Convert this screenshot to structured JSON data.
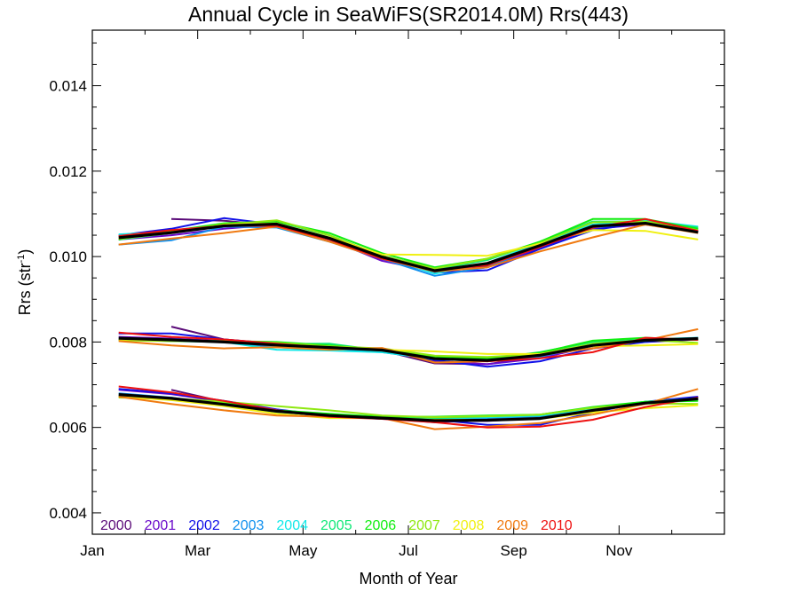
{
  "chart_data": {
    "type": "line",
    "title": "Annual Cycle in SeaWiFS(SR2014.0M) Rrs(443)",
    "xlabel": "Month of Year",
    "ylabel_base": "Rrs (str",
    "ylabel_exp": "-1",
    "ylabel_close": ")",
    "xlim": [
      1,
      13
    ],
    "ylim": [
      0.0035,
      0.0153
    ],
    "x_ticks": [
      {
        "value": 1,
        "label": "Jan"
      },
      {
        "value": 3,
        "label": "Mar"
      },
      {
        "value": 5,
        "label": "May"
      },
      {
        "value": 7,
        "label": "Jul"
      },
      {
        "value": 9,
        "label": "Sep"
      },
      {
        "value": 11,
        "label": "Nov"
      }
    ],
    "y_ticks": [
      {
        "value": 0.004,
        "label": "0.004"
      },
      {
        "value": 0.006,
        "label": "0.006"
      },
      {
        "value": 0.008,
        "label": "0.008"
      },
      {
        "value": 0.01,
        "label": "0.010"
      },
      {
        "value": 0.012,
        "label": "0.012"
      },
      {
        "value": 0.014,
        "label": "0.014"
      }
    ],
    "x": [
      1.5,
      2.5,
      3.5,
      4.5,
      5.5,
      6.5,
      7.5,
      8.5,
      9.5,
      10.5,
      11.5,
      12.5
    ],
    "groups": [
      "upper",
      "middle",
      "lower"
    ],
    "series": [
      {
        "name": "2000",
        "color": "#5a0a78",
        "upper": [
          null,
          0.01088,
          0.01084,
          0.01072,
          0.0104,
          0.01002,
          0.00972,
          0.00978,
          0.01022,
          0.01068,
          0.01078,
          0.01058
        ],
        "middle": [
          null,
          0.00836,
          0.00806,
          0.00796,
          0.00788,
          0.0078,
          0.0075,
          0.00748,
          0.00766,
          0.00792,
          0.008,
          0.00806
        ],
        "lower": [
          null,
          0.00688,
          0.0066,
          0.00638,
          0.00625,
          0.00622,
          0.00612,
          0.00618,
          0.00622,
          0.00642,
          0.00658,
          0.00668
        ]
      },
      {
        "name": "2001",
        "color": "#6a0aca",
        "upper": [
          0.0104,
          0.0105,
          0.01065,
          0.01075,
          0.0104,
          0.0099,
          0.00965,
          0.00975,
          0.0102,
          0.01065,
          0.01075,
          0.01058
        ],
        "middle": [
          0.00812,
          0.00808,
          0.00802,
          0.00798,
          0.0079,
          0.0078,
          0.00756,
          0.00748,
          0.00762,
          0.0079,
          0.00802,
          0.00808
        ],
        "lower": [
          0.00688,
          0.00678,
          0.0066,
          0.0064,
          0.00628,
          0.0062,
          0.00615,
          0.00615,
          0.00622,
          0.0064,
          0.00658,
          0.0067
        ]
      },
      {
        "name": "2002",
        "color": "#1010e8",
        "upper": [
          0.0105,
          0.01065,
          0.0109,
          0.01075,
          0.0104,
          0.00995,
          0.00962,
          0.00968,
          0.01018,
          0.01062,
          0.0108,
          0.0106
        ],
        "middle": [
          0.0082,
          0.0082,
          0.00806,
          0.00795,
          0.00786,
          0.00778,
          0.00758,
          0.00742,
          0.00755,
          0.00785,
          0.008,
          0.00808
        ],
        "lower": [
          0.0069,
          0.0068,
          0.00662,
          0.00642,
          0.00628,
          0.00622,
          0.00618,
          0.00606,
          0.00606,
          0.00635,
          0.0066,
          0.00672
        ]
      },
      {
        "name": "2003",
        "color": "#1090ee",
        "upper": [
          0.01028,
          0.01038,
          0.0107,
          0.01068,
          0.01035,
          0.00995,
          0.00955,
          0.00975,
          0.01025,
          0.01068,
          0.0108,
          0.01065
        ],
        "middle": [
          0.00808,
          0.00806,
          0.008,
          0.00788,
          0.00782,
          0.00776,
          0.0076,
          0.00755,
          0.00766,
          0.00792,
          0.00802,
          0.0081
        ],
        "lower": [
          0.0068,
          0.0067,
          0.00652,
          0.00638,
          0.00626,
          0.0062,
          0.0062,
          0.00622,
          0.00626,
          0.00642,
          0.0066,
          0.00668
        ]
      },
      {
        "name": "2004",
        "color": "#10e8e8",
        "upper": [
          0.01052,
          0.01058,
          0.01072,
          0.01075,
          0.01042,
          0.01,
          0.0096,
          0.00985,
          0.01032,
          0.01075,
          0.01085,
          0.0107
        ],
        "middle": [
          0.00806,
          0.00806,
          0.008,
          0.00782,
          0.0078,
          0.00776,
          0.0076,
          0.00758,
          0.0077,
          0.00796,
          0.00806,
          0.0081
        ],
        "lower": [
          0.00676,
          0.00668,
          0.00652,
          0.00636,
          0.00628,
          0.00622,
          0.0062,
          0.00624,
          0.00628,
          0.00644,
          0.0066,
          0.00666
        ]
      },
      {
        "name": "2005",
        "color": "#10e878",
        "upper": [
          0.0104,
          0.01055,
          0.01072,
          0.01082,
          0.0105,
          0.01002,
          0.0097,
          0.00992,
          0.01035,
          0.01082,
          0.01082,
          0.01068
        ],
        "middle": [
          0.00806,
          0.00802,
          0.008,
          0.00795,
          0.00796,
          0.0078,
          0.00762,
          0.0076,
          0.00776,
          0.008,
          0.00806,
          0.00808
        ],
        "lower": [
          0.00672,
          0.00668,
          0.00655,
          0.00638,
          0.0063,
          0.00625,
          0.00622,
          0.00626,
          0.0063,
          0.00646,
          0.0066,
          0.00665
        ]
      },
      {
        "name": "2006",
        "color": "#10ee10",
        "upper": [
          0.0104,
          0.0106,
          0.01078,
          0.01082,
          0.01055,
          0.01008,
          0.00975,
          0.00995,
          0.01035,
          0.01088,
          0.01088,
          0.01065
        ],
        "middle": [
          0.00804,
          0.00804,
          0.00802,
          0.008,
          0.00792,
          0.00782,
          0.00765,
          0.00762,
          0.00775,
          0.00803,
          0.0081,
          0.00805
        ],
        "lower": [
          0.00672,
          0.00668,
          0.00658,
          0.0064,
          0.00632,
          0.00625,
          0.00625,
          0.00628,
          0.0063,
          0.00648,
          0.0066,
          0.00662
        ]
      },
      {
        "name": "2007",
        "color": "#8ee810",
        "upper": [
          0.01042,
          0.01058,
          0.01075,
          0.01085,
          0.0105,
          0.01002,
          0.00972,
          0.00995,
          0.01032,
          0.0108,
          0.01082,
          0.01062
        ],
        "middle": [
          0.00804,
          0.00802,
          0.00802,
          0.00798,
          0.0079,
          0.00785,
          0.00768,
          0.00765,
          0.00772,
          0.00796,
          0.00805,
          0.00798
        ],
        "lower": [
          0.0067,
          0.00668,
          0.0066,
          0.0065,
          0.0064,
          0.00628,
          0.00624,
          0.00626,
          0.0063,
          0.00646,
          0.00656,
          0.00655
        ]
      },
      {
        "name": "2008",
        "color": "#f0f010",
        "upper": [
          0.01042,
          0.01055,
          0.01075,
          0.01078,
          0.01045,
          0.01005,
          0.01004,
          0.01002,
          0.0103,
          0.01062,
          0.0106,
          0.0104
        ],
        "middle": [
          0.00806,
          0.00804,
          0.008,
          0.00792,
          0.00786,
          0.00782,
          0.00778,
          0.00772,
          0.00772,
          0.0079,
          0.00792,
          0.00795
        ],
        "lower": [
          0.00672,
          0.00664,
          0.0065,
          0.00632,
          0.00622,
          0.00622,
          0.00618,
          0.00618,
          0.0062,
          0.00635,
          0.00645,
          0.00652
        ]
      },
      {
        "name": "2009",
        "color": "#f07a10",
        "upper": [
          0.01028,
          0.01042,
          0.01055,
          0.0107,
          0.01035,
          0.00995,
          0.00965,
          0.00975,
          0.01012,
          0.01045,
          0.01075,
          0.01055
        ],
        "middle": [
          0.00802,
          0.00792,
          0.00785,
          0.00788,
          0.00782,
          0.00786,
          0.00752,
          0.00755,
          0.0077,
          0.00785,
          0.00804,
          0.0083
        ],
        "lower": [
          0.00672,
          0.00655,
          0.0064,
          0.00628,
          0.00625,
          0.00622,
          0.00596,
          0.00602,
          0.0061,
          0.0063,
          0.00655,
          0.0069
        ]
      },
      {
        "name": "2010",
        "color": "#ee1010",
        "upper": [
          0.01048,
          0.01062,
          0.01072,
          0.01072,
          0.0104,
          0.00995,
          0.00968,
          0.0098,
          0.01022,
          0.01068,
          0.01088,
          0.0106
        ],
        "middle": [
          0.00822,
          0.00812,
          0.00806,
          0.00796,
          0.00786,
          0.0078,
          0.00762,
          0.00755,
          0.00762,
          0.00776,
          0.0081,
          0.00805
        ],
        "lower": [
          0.00696,
          0.00682,
          0.00662,
          0.0064,
          0.00625,
          0.0062,
          0.00612,
          0.006,
          0.00602,
          0.00618,
          0.00648,
          0.0067
        ]
      }
    ],
    "mean": {
      "color": "#000000",
      "upper": [
        0.01044,
        0.01056,
        0.01072,
        0.01076,
        0.01043,
        0.00999,
        0.00967,
        0.00984,
        0.01026,
        0.01071,
        0.01078,
        0.01057
      ],
      "middle": [
        0.00809,
        0.00805,
        0.008,
        0.00793,
        0.00787,
        0.00781,
        0.00761,
        0.00757,
        0.00769,
        0.00792,
        0.00804,
        0.00808
      ],
      "lower": [
        0.00677,
        0.00668,
        0.00654,
        0.00638,
        0.00628,
        0.00622,
        0.00616,
        0.00617,
        0.00621,
        0.0064,
        0.00657,
        0.00667
      ]
    }
  }
}
